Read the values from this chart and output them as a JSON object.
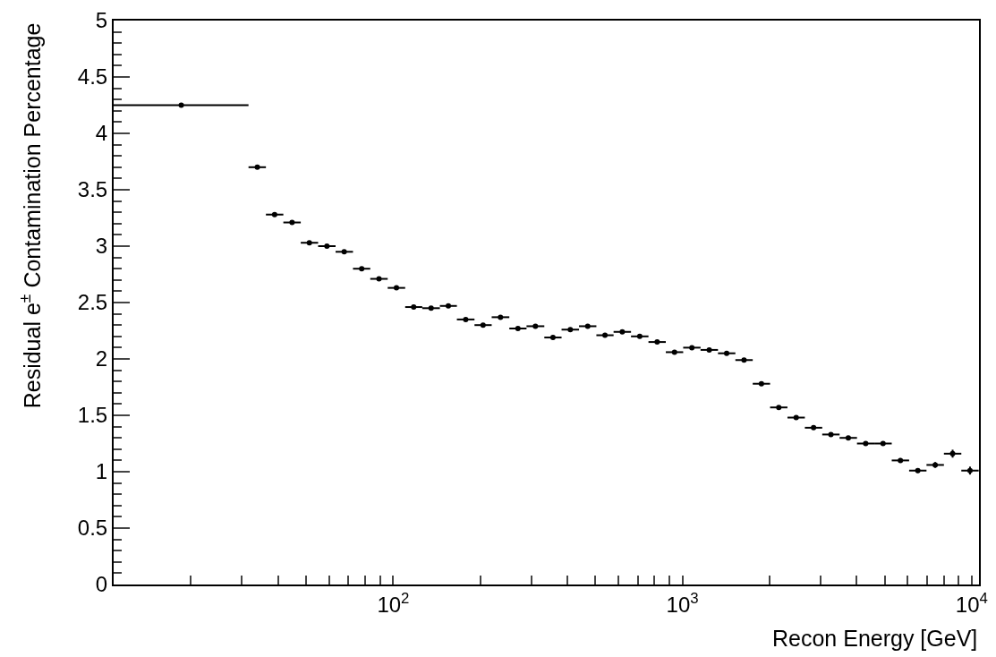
{
  "chart_data": {
    "type": "scatter",
    "xlabel": "Recon Energy [GeV]",
    "ylabel": "Residual e$^{±}$ Contamination Percentage",
    "log": "x",
    "xlim": [
      10.8,
      10600
    ],
    "xticks": [
      {
        "value": 20,
        "label": null
      },
      {
        "value": 30,
        "label": null
      },
      {
        "value": 40,
        "label": null
      },
      {
        "value": 50,
        "label": null
      },
      {
        "value": 60,
        "label": null
      },
      {
        "value": 70,
        "label": null
      },
      {
        "value": 80,
        "label": null
      },
      {
        "value": 90,
        "label": null
      },
      {
        "value": 100,
        "label": "10$^{2}$"
      },
      {
        "value": 200,
        "label": null
      },
      {
        "value": 300,
        "label": null
      },
      {
        "value": 400,
        "label": null
      },
      {
        "value": 500,
        "label": null
      },
      {
        "value": 600,
        "label": null
      },
      {
        "value": 700,
        "label": null
      },
      {
        "value": 800,
        "label": null
      },
      {
        "value": 900,
        "label": null
      },
      {
        "value": 1000,
        "label": "10$^{3}$"
      },
      {
        "value": 2000,
        "label": null
      },
      {
        "value": 3000,
        "label": null
      },
      {
        "value": 4000,
        "label": null
      },
      {
        "value": 5000,
        "label": null
      },
      {
        "value": 6000,
        "label": null
      },
      {
        "value": 7000,
        "label": null
      },
      {
        "value": 8000,
        "label": null
      },
      {
        "value": 9000,
        "label": null
      },
      {
        "value": 10000,
        "label": "10$^{4}$"
      }
    ],
    "ylim": [
      0,
      5
    ],
    "yticks": [
      0,
      0.5,
      1,
      1.5,
      2,
      2.5,
      3,
      3.5,
      4,
      4.5,
      5
    ],
    "marker": "circle",
    "color": "#000000",
    "x": [
      18.5,
      33.9,
      38.9,
      44.7,
      51.3,
      59.0,
      67.7,
      77.8,
      89.3,
      102.6,
      117.7,
      135.2,
      155.1,
      178.1,
      204.5,
      234.9,
      269.9,
      310.2,
      356.7,
      409.5,
      470.4,
      539.7,
      619.5,
      711.8,
      817.6,
      938.8,
      1078,
      1238,
      1422,
      1633,
      1875,
      2153,
      2473,
      2840,
      3261,
      3745,
      4300,
      4938,
      5671,
      6512,
      7480,
      8592,
      9867
    ],
    "values": [
      4.25,
      3.7,
      3.28,
      3.21,
      3.03,
      3.0,
      2.95,
      2.8,
      2.71,
      2.63,
      2.46,
      2.45,
      2.47,
      2.35,
      2.3,
      2.37,
      2.27,
      2.29,
      2.19,
      2.26,
      2.29,
      2.21,
      2.24,
      2.2,
      2.15,
      2.06,
      2.1,
      2.08,
      2.05,
      1.99,
      1.78,
      1.57,
      1.48,
      1.39,
      1.33,
      1.3,
      1.25,
      1.25,
      1.1,
      1.01,
      1.06,
      1.16,
      1.01
    ],
    "xerrors": [
      [
        10.8,
        31.6
      ],
      [
        31.6,
        36.3
      ],
      [
        36.3,
        41.7
      ],
      [
        41.7,
        47.9
      ],
      [
        47.9,
        55.0
      ],
      [
        55.0,
        63.2
      ],
      [
        63.2,
        72.6
      ],
      [
        72.6,
        83.3
      ],
      [
        83.3,
        95.7
      ],
      [
        95.7,
        110
      ],
      [
        110,
        126
      ],
      [
        126,
        145
      ],
      [
        145,
        166
      ],
      [
        166,
        191
      ],
      [
        191,
        219
      ],
      [
        219,
        252
      ],
      [
        252,
        289
      ],
      [
        289,
        333
      ],
      [
        333,
        382
      ],
      [
        382,
        439
      ],
      [
        439,
        504
      ],
      [
        504,
        578
      ],
      [
        578,
        664
      ],
      [
        664,
        763
      ],
      [
        763,
        876
      ],
      [
        876,
        1006
      ],
      [
        1006,
        1155
      ],
      [
        1155,
        1327
      ],
      [
        1327,
        1524
      ],
      [
        1524,
        1750
      ],
      [
        1750,
        2009
      ],
      [
        2009,
        2307
      ],
      [
        2307,
        2650
      ],
      [
        2650,
        3043
      ],
      [
        3043,
        3494
      ],
      [
        3494,
        4013
      ],
      [
        4013,
        4608
      ],
      [
        4608,
        5292
      ],
      [
        5292,
        6077
      ],
      [
        6077,
        6979
      ],
      [
        6979,
        8017
      ],
      [
        8017,
        9208
      ],
      [
        9208,
        10573
      ]
    ],
    "errors": [
      null,
      null,
      null,
      null,
      null,
      null,
      null,
      null,
      null,
      null,
      null,
      null,
      null,
      null,
      null,
      null,
      null,
      null,
      null,
      null,
      null,
      null,
      null,
      null,
      null,
      null,
      null,
      null,
      null,
      null,
      null,
      null,
      null,
      0.01,
      0.01,
      0.01,
      0.015,
      0.015,
      0.02,
      0.02,
      0.025,
      0.035,
      0.035
    ]
  }
}
